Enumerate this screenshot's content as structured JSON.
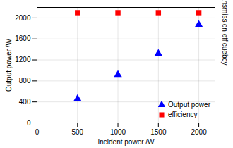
{
  "chart_data": {
    "type": "scatter",
    "xlabel": "Incident power /W",
    "ylabel": "Output power /W",
    "y2label": "Transmission efficuebcy",
    "series": [
      {
        "name": "Output power",
        "color": "#0000ff",
        "marker": "triangle",
        "x": [
          500,
          1000,
          1500,
          2000
        ],
        "values": [
          460,
          920,
          1320,
          1870
        ]
      },
      {
        "name": "efficiency",
        "color": "#ff0000",
        "marker": "square",
        "x": [
          500,
          1000,
          1500,
          2000
        ],
        "values": [
          2100,
          2100,
          2100,
          2100
        ]
      }
    ],
    "xlim": [
      0,
      2200
    ],
    "ylim": [
      0,
      2200
    ],
    "xticks": [
      0,
      500,
      1000,
      1500,
      2000
    ],
    "yticks": [
      0,
      400,
      800,
      1200,
      1600,
      2000
    ],
    "grid": true,
    "legend": "lower right"
  }
}
